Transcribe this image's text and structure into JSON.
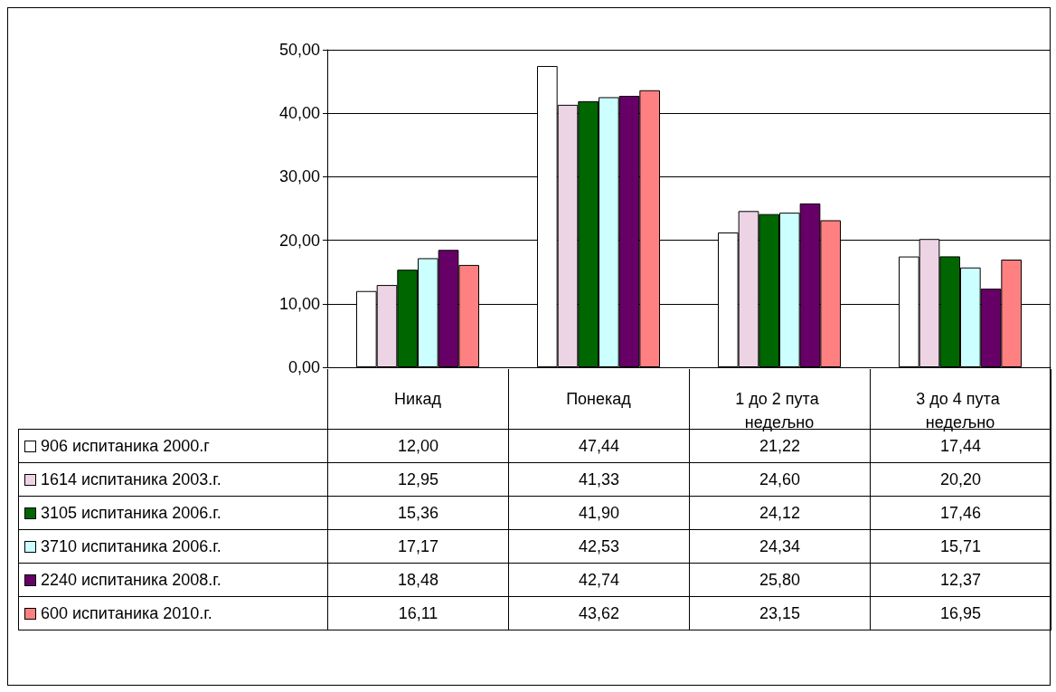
{
  "chart_data": {
    "type": "bar",
    "categories": [
      "Никад",
      "Понекад",
      "1 до 2 пута недељно",
      "3 до 4 пута недељно"
    ],
    "series": [
      {
        "name": "906 испитаника 2000.г",
        "color": "#ffffff",
        "values": [
          12.0,
          47.44,
          21.22,
          17.44
        ],
        "value_labels": [
          "12,00",
          "47,44",
          "21,22",
          "17,44"
        ]
      },
      {
        "name": "1614 испитаника 2003.г.",
        "color": "#ecd4e4",
        "values": [
          12.95,
          41.33,
          24.6,
          20.2
        ],
        "value_labels": [
          "12,95",
          "41,33",
          "24,60",
          "20,20"
        ]
      },
      {
        "name": "3105 испитаника 2006.г.",
        "color": "#006600",
        "values": [
          15.36,
          41.9,
          24.12,
          17.46
        ],
        "value_labels": [
          "15,36",
          "41,90",
          "24,12",
          "17,46"
        ]
      },
      {
        "name": "3710 испитаника 2006.г.",
        "color": "#ccffff",
        "values": [
          17.17,
          42.53,
          24.34,
          15.71
        ],
        "value_labels": [
          "17,17",
          "42,53",
          "24,34",
          "15,71"
        ]
      },
      {
        "name": "2240 испитаника 2008.г.",
        "color": "#660066",
        "values": [
          18.48,
          42.74,
          25.8,
          12.37
        ],
        "value_labels": [
          "18,48",
          "42,74",
          "25,80",
          "12,37"
        ]
      },
      {
        "name": "600 испитаника 2010.г.",
        "color": "#ff8080",
        "values": [
          16.11,
          43.62,
          23.15,
          16.95
        ],
        "value_labels": [
          "16,11",
          "43,62",
          "23,15",
          "16,95"
        ]
      }
    ],
    "ylim": [
      0,
      50
    ],
    "yticks": [
      {
        "value": 0,
        "label": "0,00"
      },
      {
        "value": 10,
        "label": "10,00"
      },
      {
        "value": 20,
        "label": "20,00"
      },
      {
        "value": 30,
        "label": "30,00"
      },
      {
        "value": 40,
        "label": "40,00"
      },
      {
        "value": 50,
        "label": "50,00"
      }
    ],
    "grid": "y",
    "legend": "bottom"
  }
}
